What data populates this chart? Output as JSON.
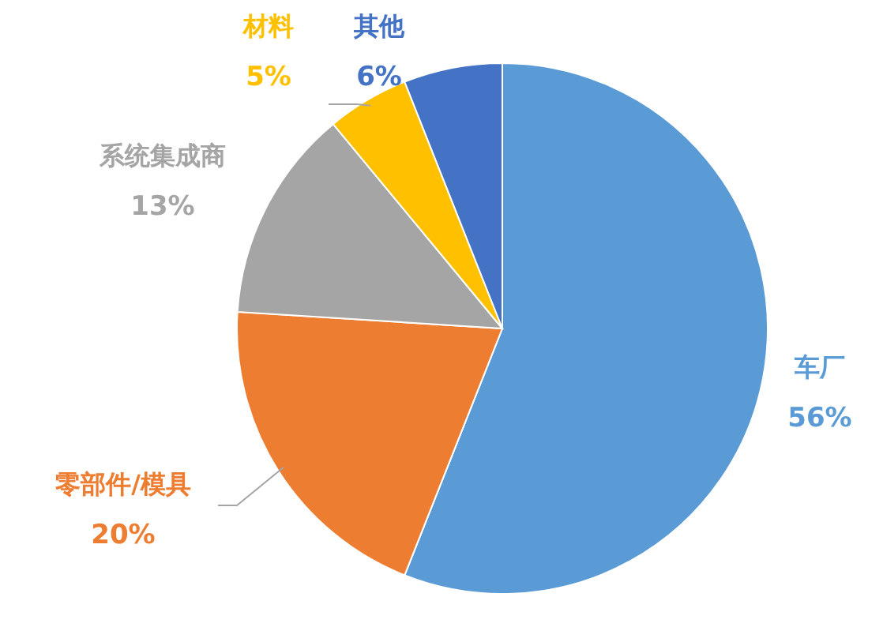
{
  "chart_data": {
    "type": "pie",
    "categories": [
      "车厂",
      "零部件/模具",
      "系统集成商",
      "材料",
      "其他"
    ],
    "values": [
      56,
      20,
      13,
      5,
      6
    ],
    "colors": [
      "#5b9bd5",
      "#ed7d31",
      "#a5a5a5",
      "#ffc000",
      "#4472c4"
    ],
    "value_labels": [
      "56%",
      "20%",
      "13%",
      "5%",
      "6%"
    ]
  }
}
